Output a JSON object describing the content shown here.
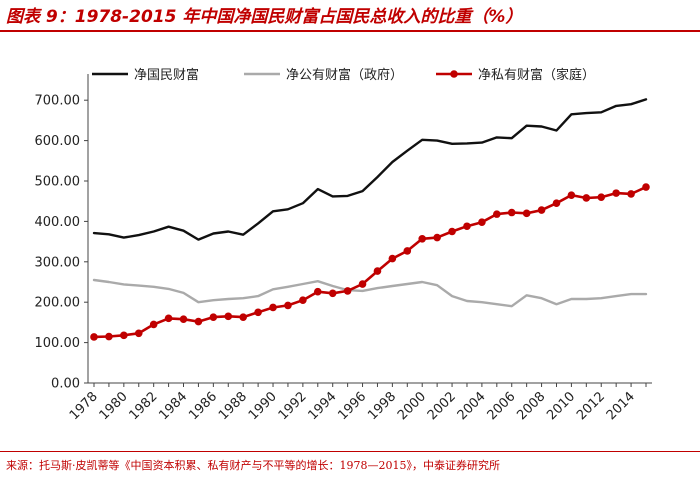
{
  "header": {
    "title": "图表 9：1978-2015 年中国净国民财富占国民总收入的比重（%）"
  },
  "footer": {
    "source": "来源：托马斯·皮凯蒂等《中国资本积累、私有财产与不平等的增长：1978—2015》，中泰证券研究所"
  },
  "chart_data": {
    "type": "line",
    "title": "图表 9：1978-2015 年中国净国民财富占国民总收入的比重（%）",
    "xlabel": "",
    "ylabel": "",
    "ylim": [
      0,
      750
    ],
    "yticks": [
      "0.00",
      "100.00",
      "200.00",
      "300.00",
      "400.00",
      "500.00",
      "600.00",
      "700.00"
    ],
    "xticks": [
      "1978",
      "1980",
      "1982",
      "1984",
      "1986",
      "1988",
      "1990",
      "1992",
      "1994",
      "1996",
      "1998",
      "2000",
      "2002",
      "2004",
      "2006",
      "2008",
      "2010",
      "2012",
      "2014"
    ],
    "x": [
      1978,
      1979,
      1980,
      1981,
      1982,
      1983,
      1984,
      1985,
      1986,
      1987,
      1988,
      1989,
      1990,
      1991,
      1992,
      1993,
      1994,
      1995,
      1996,
      1997,
      1998,
      1999,
      2000,
      2001,
      2002,
      2003,
      2004,
      2005,
      2006,
      2007,
      2008,
      2009,
      2010,
      2011,
      2012,
      2013,
      2014,
      2015
    ],
    "legend_position": "top",
    "grid": false,
    "series": [
      {
        "name": "净国民财富",
        "color": "#111111",
        "marker": "none",
        "values": [
          371,
          368,
          360,
          366,
          375,
          387,
          377,
          355,
          370,
          375,
          367,
          395,
          425,
          430,
          445,
          480,
          462,
          463,
          475,
          510,
          547,
          575,
          602,
          600,
          592,
          593,
          595,
          608,
          606,
          637,
          635,
          625,
          665,
          668,
          670,
          686,
          690,
          702
        ]
      },
      {
        "name": "净公有财富（政府）",
        "color": "#aaaaaa",
        "marker": "none",
        "values": [
          255,
          250,
          244,
          241,
          238,
          233,
          223,
          200,
          205,
          208,
          210,
          215,
          232,
          238,
          245,
          252,
          240,
          230,
          228,
          235,
          240,
          245,
          250,
          242,
          215,
          203,
          200,
          195,
          190,
          217,
          210,
          195,
          208,
          208,
          210,
          215,
          220,
          220
        ]
      },
      {
        "name": "净私有财富（家庭）",
        "color": "#c00000",
        "marker": "circle",
        "values": [
          114,
          115,
          118,
          123,
          145,
          160,
          158,
          152,
          163,
          165,
          163,
          175,
          187,
          192,
          205,
          226,
          222,
          228,
          245,
          277,
          308,
          327,
          357,
          360,
          375,
          388,
          398,
          418,
          422,
          420,
          428,
          445,
          465,
          458,
          460,
          470,
          468,
          485
        ]
      }
    ]
  }
}
